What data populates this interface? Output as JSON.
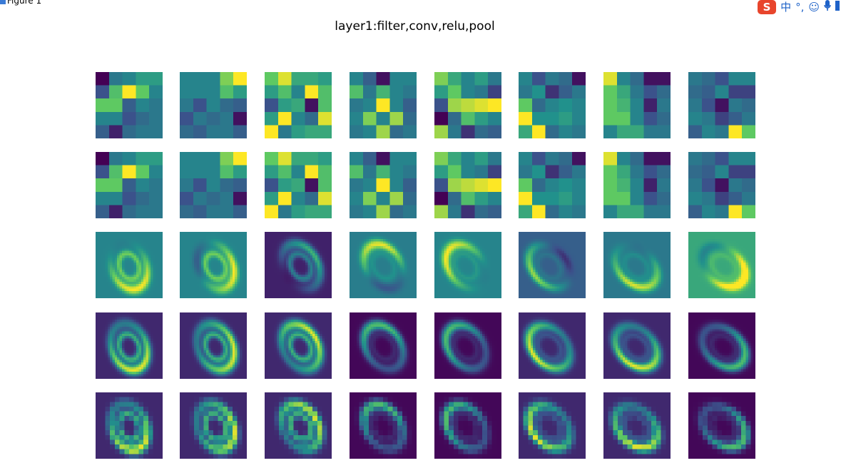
{
  "window": {
    "title": "Figure 1",
    "icon": "figure-window-icon"
  },
  "ime_toolbar": {
    "logo": "S",
    "mode": "中",
    "punct": "°,",
    "emoji_icon": "smiley-icon",
    "mic_icon": "microphone-icon",
    "extra_icon": "keyboard-icon"
  },
  "figure": {
    "title": "layer1:filter,conv,relu,pool",
    "rows": [
      "filter",
      "filter",
      "conv",
      "relu",
      "pool"
    ],
    "columns": 8,
    "colormap": [
      "#440154",
      "#3b528b",
      "#21918c",
      "#5ec962",
      "#fde725"
    ]
  },
  "chart_data": {
    "type": "heatmap",
    "title": "layer1:filter,conv,relu,pool",
    "rows": [
      {
        "name": "filter",
        "size": 5
      },
      {
        "name": "filter",
        "size": 5
      },
      {
        "name": "conv",
        "size": 28
      },
      {
        "name": "relu",
        "size": 28
      },
      {
        "name": "pool",
        "size": 14
      }
    ],
    "filters": [
      [
        [
          0.0,
          0.4,
          0.45,
          0.55,
          0.55
        ],
        [
          0.25,
          0.7,
          1.0,
          0.75,
          0.45
        ],
        [
          0.75,
          0.75,
          0.3,
          0.45,
          0.4
        ],
        [
          0.45,
          0.45,
          0.25,
          0.35,
          0.4
        ],
        [
          0.3,
          0.1,
          0.35,
          0.4,
          0.4
        ]
      ],
      [
        [
          0.45,
          0.45,
          0.45,
          0.8,
          1.0
        ],
        [
          0.45,
          0.45,
          0.45,
          0.7,
          0.55
        ],
        [
          0.4,
          0.25,
          0.45,
          0.35,
          0.3
        ],
        [
          0.25,
          0.4,
          0.35,
          0.4,
          0.05
        ],
        [
          0.35,
          0.3,
          0.4,
          0.4,
          0.3
        ]
      ],
      [
        [
          0.75,
          0.95,
          0.6,
          0.6,
          0.55
        ],
        [
          0.55,
          0.7,
          0.45,
          1.0,
          0.7
        ],
        [
          0.25,
          0.55,
          0.6,
          0.05,
          0.7
        ],
        [
          0.55,
          1.0,
          0.45,
          0.35,
          0.95
        ],
        [
          1.0,
          0.4,
          0.55,
          0.6,
          0.6
        ]
      ],
      [
        [
          0.45,
          0.3,
          0.05,
          0.45,
          0.45
        ],
        [
          0.7,
          0.4,
          0.65,
          0.45,
          0.4
        ],
        [
          0.4,
          0.45,
          1.0,
          0.45,
          0.3
        ],
        [
          0.45,
          0.8,
          0.45,
          0.85,
          0.35
        ],
        [
          0.4,
          0.45,
          0.85,
          0.35,
          0.4
        ]
      ],
      [
        [
          0.8,
          0.6,
          0.45,
          0.55,
          0.4
        ],
        [
          0.55,
          0.75,
          0.45,
          0.4,
          0.2
        ],
        [
          0.25,
          0.85,
          0.9,
          0.95,
          1.0
        ],
        [
          0.0,
          0.35,
          0.7,
          0.55,
          0.45
        ],
        [
          0.85,
          0.4,
          0.15,
          0.35,
          0.3
        ]
      ],
      [
        [
          0.45,
          0.25,
          0.4,
          0.35,
          0.05
        ],
        [
          0.4,
          0.5,
          0.15,
          0.3,
          0.4
        ],
        [
          0.75,
          0.35,
          0.45,
          0.5,
          0.45
        ],
        [
          1.0,
          0.5,
          0.5,
          0.55,
          0.45
        ],
        [
          0.6,
          1.0,
          0.35,
          0.45,
          0.4
        ]
      ],
      [
        [
          0.95,
          0.45,
          0.35,
          0.05,
          0.05
        ],
        [
          0.75,
          0.6,
          0.4,
          0.25,
          0.35
        ],
        [
          0.75,
          0.65,
          0.45,
          0.1,
          0.4
        ],
        [
          0.75,
          0.75,
          0.45,
          0.25,
          0.35
        ],
        [
          0.45,
          0.6,
          0.6,
          0.4,
          0.4
        ]
      ],
      [
        [
          0.4,
          0.35,
          0.25,
          0.45,
          0.45
        ],
        [
          0.35,
          0.3,
          0.45,
          0.2,
          0.2
        ],
        [
          0.4,
          0.25,
          0.05,
          0.4,
          0.35
        ],
        [
          0.45,
          0.4,
          0.2,
          0.3,
          0.4
        ],
        [
          0.3,
          0.45,
          0.4,
          1.0,
          0.75
        ]
      ]
    ],
    "conv_background": [
      0.45,
      0.45,
      0.1,
      0.42,
      0.45,
      0.3,
      0.4,
      0.6
    ]
  }
}
